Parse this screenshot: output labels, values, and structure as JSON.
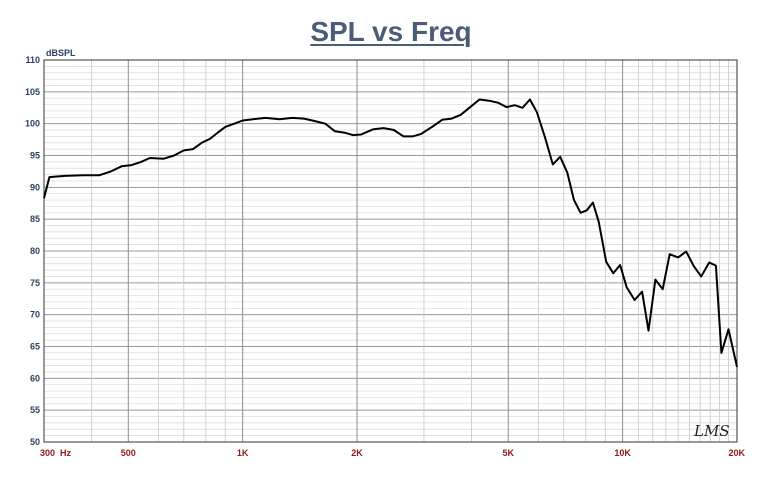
{
  "chart_data": {
    "type": "line",
    "title": "SPL vs Freq",
    "ylabel": "dBSPL",
    "xlabel": "",
    "x_scale": "log",
    "xlim": [
      300,
      20000
    ],
    "ylim": [
      50,
      110
    ],
    "grid": true,
    "yticks": [
      {
        "value": 110,
        "label": "110"
      },
      {
        "value": 105,
        "label": "105"
      },
      {
        "value": 100,
        "label": "100"
      },
      {
        "value": 95,
        "label": "95"
      },
      {
        "value": 90,
        "label": "90"
      },
      {
        "value": 85,
        "label": "85"
      },
      {
        "value": 80,
        "label": "80"
      },
      {
        "value": 75,
        "label": "75"
      },
      {
        "value": 70,
        "label": "70"
      },
      {
        "value": 65,
        "label": "65"
      },
      {
        "value": 60,
        "label": "60"
      },
      {
        "value": 55,
        "label": "55"
      },
      {
        "value": 50,
        "label": "50"
      }
    ],
    "xticks": [
      {
        "value": 300,
        "label": "300  Hz"
      },
      {
        "value": 500,
        "label": "500"
      },
      {
        "value": 1000,
        "label": "1K"
      },
      {
        "value": 2000,
        "label": "2K"
      },
      {
        "value": 5000,
        "label": "5K"
      },
      {
        "value": 10000,
        "label": "10K"
      },
      {
        "value": 20000,
        "label": "20K"
      }
    ],
    "series": [
      {
        "color": "#000000",
        "points": [
          [
            300,
            88.3
          ],
          [
            310,
            91.6
          ],
          [
            340,
            91.8
          ],
          [
            380,
            91.9
          ],
          [
            420,
            91.9
          ],
          [
            450,
            92.5
          ],
          [
            480,
            93.3
          ],
          [
            510,
            93.5
          ],
          [
            540,
            94.0
          ],
          [
            570,
            94.6
          ],
          [
            620,
            94.5
          ],
          [
            660,
            95.0
          ],
          [
            700,
            95.8
          ],
          [
            740,
            96.0
          ],
          [
            780,
            97.0
          ],
          [
            820,
            97.6
          ],
          [
            860,
            98.6
          ],
          [
            900,
            99.5
          ],
          [
            950,
            100.0
          ],
          [
            1000,
            100.5
          ],
          [
            1100,
            100.8
          ],
          [
            1150,
            100.9
          ],
          [
            1250,
            100.7
          ],
          [
            1350,
            100.9
          ],
          [
            1450,
            100.8
          ],
          [
            1550,
            100.4
          ],
          [
            1650,
            100.0
          ],
          [
            1750,
            98.8
          ],
          [
            1850,
            98.6
          ],
          [
            1950,
            98.2
          ],
          [
            2050,
            98.3
          ],
          [
            2200,
            99.1
          ],
          [
            2350,
            99.3
          ],
          [
            2500,
            99.0
          ],
          [
            2650,
            98.0
          ],
          [
            2800,
            98.0
          ],
          [
            2950,
            98.4
          ],
          [
            3150,
            99.5
          ],
          [
            3350,
            100.6
          ],
          [
            3550,
            100.8
          ],
          [
            3750,
            101.4
          ],
          [
            3950,
            102.5
          ],
          [
            4200,
            103.8
          ],
          [
            4450,
            103.6
          ],
          [
            4700,
            103.3
          ],
          [
            4950,
            102.6
          ],
          [
            5200,
            102.9
          ],
          [
            5450,
            102.5
          ],
          [
            5700,
            103.8
          ],
          [
            5950,
            101.8
          ],
          [
            6250,
            97.8
          ],
          [
            6550,
            93.6
          ],
          [
            6850,
            94.8
          ],
          [
            7150,
            92.3
          ],
          [
            7450,
            88.0
          ],
          [
            7750,
            86.0
          ],
          [
            8050,
            86.4
          ],
          [
            8350,
            87.6
          ],
          [
            8650,
            84.6
          ],
          [
            9050,
            78.3
          ],
          [
            9450,
            76.5
          ],
          [
            9850,
            77.8
          ],
          [
            10250,
            74.3
          ],
          [
            10750,
            72.3
          ],
          [
            11250,
            73.6
          ],
          [
            11700,
            67.5
          ],
          [
            12200,
            75.5
          ],
          [
            12750,
            74.0
          ],
          [
            13300,
            79.5
          ],
          [
            14000,
            79.0
          ],
          [
            14700,
            79.9
          ],
          [
            15400,
            77.6
          ],
          [
            16100,
            76.0
          ],
          [
            16900,
            78.2
          ],
          [
            17600,
            77.7
          ],
          [
            18200,
            64.0
          ],
          [
            19000,
            67.7
          ],
          [
            20000,
            61.8
          ]
        ]
      }
    ]
  },
  "watermark": "LMS"
}
